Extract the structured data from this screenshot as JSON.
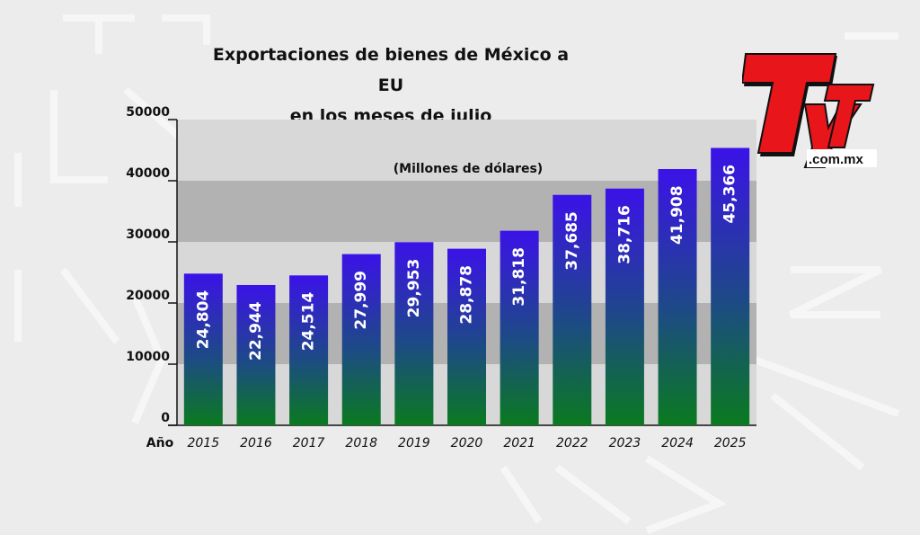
{
  "title_line1": "Exportaciones de bienes de México a EU",
  "title_line2": "en los meses de julio",
  "logo": {
    "text": "TyT",
    "domain": ".com.mx"
  },
  "colors": {
    "bar_top": "#3b12e8",
    "bar_bottom": "#0a7a1f",
    "band_light": "#d8d8d8",
    "band_dark": "#b2b2b2",
    "logo_red": "#e8151b"
  },
  "chart_data": {
    "type": "bar",
    "unit_label": "(Millones de dólares)",
    "x_axis_label": "Año",
    "categories": [
      "2015",
      "2016",
      "2017",
      "2018",
      "2019",
      "2020",
      "2021",
      "2022",
      "2023",
      "2024",
      "2025"
    ],
    "values": [
      24804,
      22944,
      24514,
      27999,
      29953,
      28878,
      31818,
      37685,
      38716,
      41908,
      45366
    ],
    "value_labels": [
      "24,804",
      "22,944",
      "24,514",
      "27,999",
      "29,953",
      "28,878",
      "31,818",
      "37,685",
      "38,716",
      "41,908",
      "45,366"
    ],
    "ylim": [
      0,
      50000
    ],
    "yticks": [
      "0",
      "10000",
      "20000",
      "30000",
      "40000",
      "50000"
    ]
  }
}
